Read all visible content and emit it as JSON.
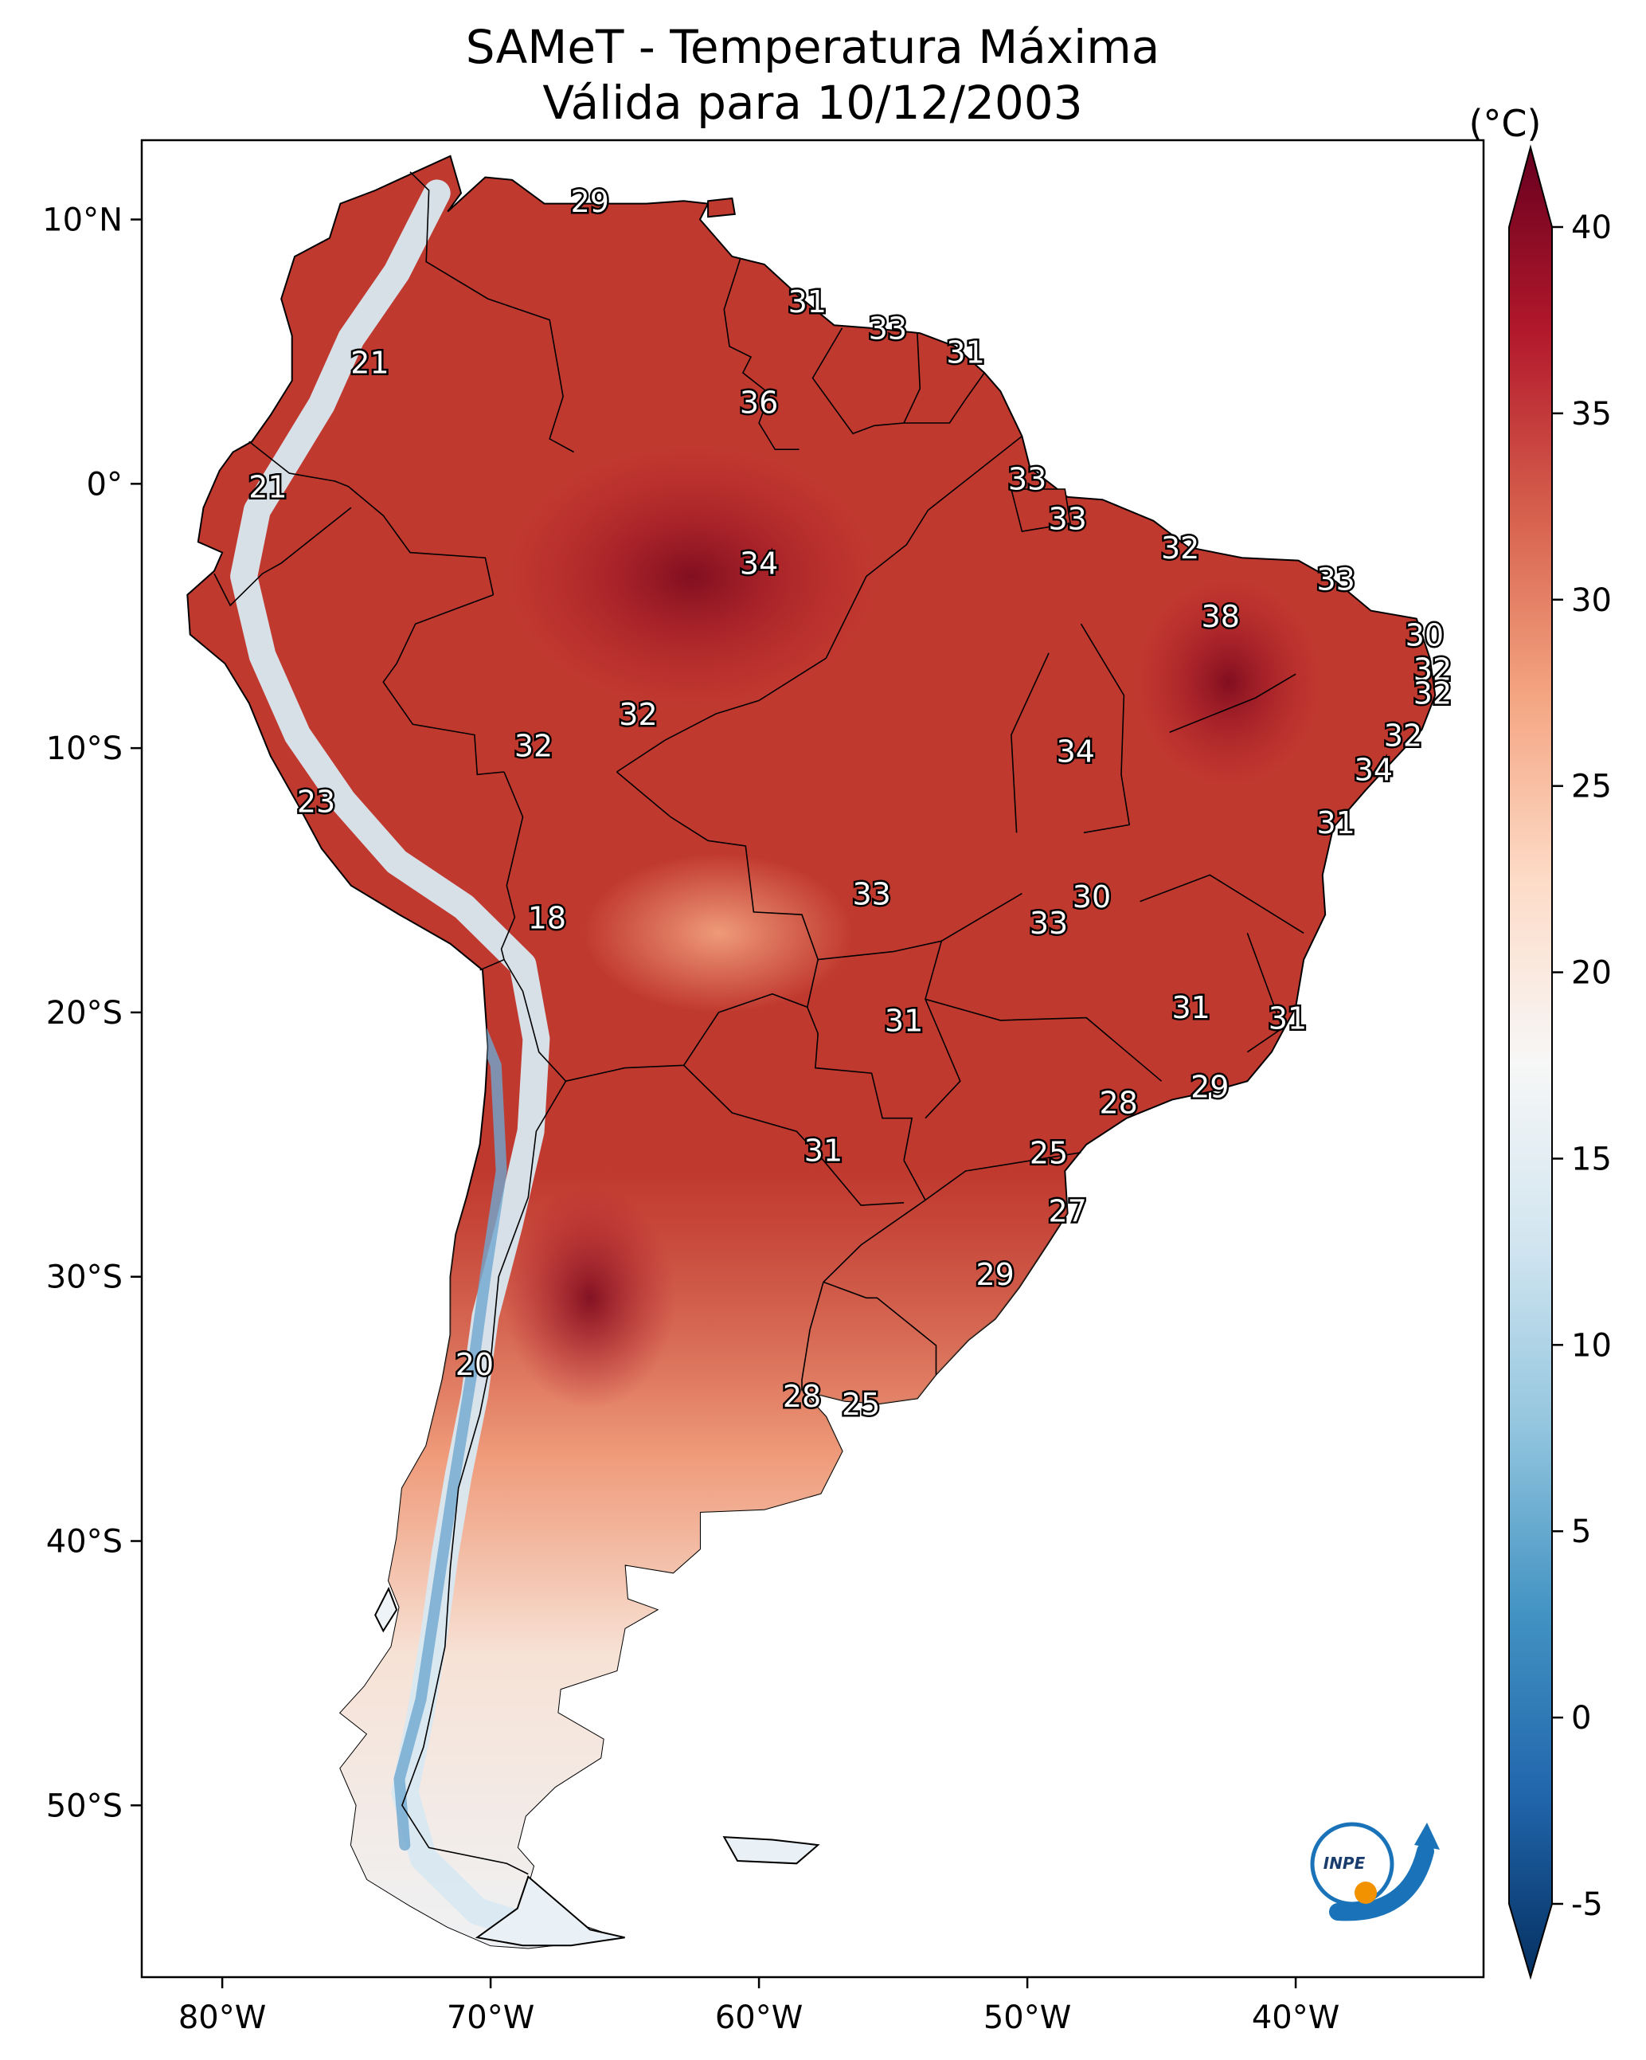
{
  "title_lines": [
    "SAMeT - Temperatura Máxima",
    "Válida para 10/12/2003"
  ],
  "colorbar": {
    "unit": "(°C)",
    "min": -5,
    "max": 40,
    "ticks": [
      -5,
      0,
      5,
      10,
      15,
      20,
      25,
      30,
      35,
      40
    ],
    "colors": [
      "#053061",
      "#2166ac",
      "#4393c3",
      "#92c5de",
      "#d1e5f0",
      "#f7f7f7",
      "#fddbc7",
      "#f4a582",
      "#d6604d",
      "#b2182b",
      "#67001f"
    ]
  },
  "axes": {
    "lon_range": [
      -83,
      -33
    ],
    "lat_range": [
      -56.5,
      13
    ],
    "lon_ticks": [
      {
        "v": -80,
        "label": "80°W"
      },
      {
        "v": -70,
        "label": "70°W"
      },
      {
        "v": -60,
        "label": "60°W"
      },
      {
        "v": -50,
        "label": "50°W"
      },
      {
        "v": -40,
        "label": "40°W"
      }
    ],
    "lat_ticks": [
      {
        "v": 10,
        "label": "10°N"
      },
      {
        "v": 0,
        "label": "0°"
      },
      {
        "v": -10,
        "label": "10°S"
      },
      {
        "v": -20,
        "label": "20°S"
      },
      {
        "v": -30,
        "label": "30°S"
      },
      {
        "v": -40,
        "label": "40°S"
      },
      {
        "v": -50,
        "label": "50°S"
      }
    ]
  },
  "logo": {
    "text": "INPE",
    "colors": {
      "blue": "#1a73b8",
      "orange": "#f39200"
    }
  },
  "city_values": [
    {
      "lon": -66.3,
      "lat": 10.6,
      "v": "29"
    },
    {
      "lon": -74.5,
      "lat": 4.5,
      "v": "21"
    },
    {
      "lon": -78.3,
      "lat": -0.2,
      "v": "21"
    },
    {
      "lon": -60.0,
      "lat": 3.0,
      "v": "36"
    },
    {
      "lon": -55.2,
      "lat": 5.8,
      "v": "33"
    },
    {
      "lon": -58.2,
      "lat": 6.8,
      "v": "31"
    },
    {
      "lon": -52.3,
      "lat": 4.9,
      "v": "31"
    },
    {
      "lon": -50.0,
      "lat": 0.1,
      "v": "33"
    },
    {
      "lon": -60.0,
      "lat": -3.1,
      "v": "34"
    },
    {
      "lon": -48.5,
      "lat": -1.4,
      "v": "33"
    },
    {
      "lon": -44.3,
      "lat": -2.5,
      "v": "32"
    },
    {
      "lon": -38.5,
      "lat": -3.7,
      "v": "33"
    },
    {
      "lon": -42.8,
      "lat": -5.1,
      "v": "38"
    },
    {
      "lon": -35.2,
      "lat": -5.8,
      "v": "30"
    },
    {
      "lon": -34.9,
      "lat": -7.1,
      "v": "32"
    },
    {
      "lon": -34.9,
      "lat": -8.0,
      "v": "32"
    },
    {
      "lon": -36.0,
      "lat": -9.6,
      "v": "32"
    },
    {
      "lon": -37.1,
      "lat": -10.9,
      "v": "34"
    },
    {
      "lon": -64.5,
      "lat": -8.8,
      "v": "32"
    },
    {
      "lon": -68.4,
      "lat": -10.0,
      "v": "32"
    },
    {
      "lon": -48.2,
      "lat": -10.2,
      "v": "34"
    },
    {
      "lon": -38.5,
      "lat": -12.9,
      "v": "31"
    },
    {
      "lon": -76.5,
      "lat": -12.1,
      "v": "23"
    },
    {
      "lon": -55.8,
      "lat": -15.6,
      "v": "33"
    },
    {
      "lon": -47.6,
      "lat": -15.7,
      "v": "30"
    },
    {
      "lon": -49.2,
      "lat": -16.7,
      "v": "33"
    },
    {
      "lon": -67.9,
      "lat": -16.5,
      "v": "18"
    },
    {
      "lon": -54.6,
      "lat": -20.4,
      "v": "31"
    },
    {
      "lon": -43.9,
      "lat": -19.9,
      "v": "31"
    },
    {
      "lon": -40.3,
      "lat": -20.3,
      "v": "31"
    },
    {
      "lon": -43.2,
      "lat": -22.9,
      "v": "29"
    },
    {
      "lon": -46.6,
      "lat": -23.5,
      "v": "28"
    },
    {
      "lon": -49.2,
      "lat": -25.4,
      "v": "25"
    },
    {
      "lon": -57.6,
      "lat": -25.3,
      "v": "31"
    },
    {
      "lon": -48.5,
      "lat": -27.6,
      "v": "27"
    },
    {
      "lon": -51.2,
      "lat": -30.0,
      "v": "29"
    },
    {
      "lon": -70.6,
      "lat": -33.4,
      "v": "20"
    },
    {
      "lon": -58.4,
      "lat": -34.6,
      "v": "28"
    },
    {
      "lon": -56.2,
      "lat": -34.9,
      "v": "25"
    }
  ]
}
